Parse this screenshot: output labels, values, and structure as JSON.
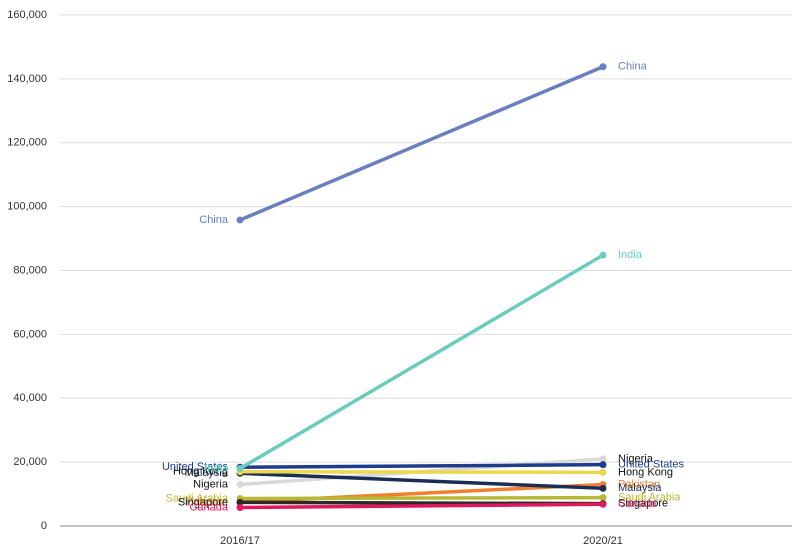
{
  "chart_data": {
    "type": "slope",
    "categories": [
      "2016/17",
      "2020/21"
    ],
    "ylim": [
      0,
      160000
    ],
    "yticks": [
      0,
      {
        "value": 20000,
        "label": "20,000"
      },
      {
        "value": 40000,
        "label": "40,000"
      },
      {
        "value": 60000,
        "label": "60,000"
      },
      {
        "value": 80000,
        "label": "80,000"
      },
      {
        "value": 100000,
        "label": "100,000"
      },
      {
        "value": 120000,
        "label": "120,000"
      },
      {
        "value": 140000,
        "label": "140,000"
      },
      {
        "value": 160000,
        "label": "160,000"
      }
    ],
    "grid": true,
    "series": [
      {
        "name": "Nigeria",
        "color": "#d9d9d9",
        "label_color": "#111111",
        "values": [
          13000,
          21000
        ]
      },
      {
        "name": "Pakistan",
        "color": "#f07f2f",
        "label_color": "#f07f2f",
        "values": [
          7500,
          13000
        ]
      },
      {
        "name": "Saudi Arabia",
        "color": "#b8b838",
        "label_color": "#b8b838",
        "values": [
          8600,
          8900
        ]
      },
      {
        "name": "Singapore",
        "color": "#2a2a2a",
        "label_color": "#111111",
        "values": [
          7400,
          7000
        ]
      },
      {
        "name": "Canada",
        "color": "#e0195a",
        "label_color": "#e0195a",
        "values": [
          5800,
          6800
        ]
      },
      {
        "name": "Malaysia",
        "color": "#1c2d55",
        "label_color": "#1c2d55",
        "values": [
          16500,
          11800
        ]
      },
      {
        "name": "Hong Kong",
        "color": "#ecd84e",
        "label_color": "#111111",
        "values": [
          17000,
          16800
        ]
      },
      {
        "name": "United States",
        "color": "#1f3b8c",
        "label_color": "#1f3b8c",
        "values": [
          18400,
          19200
        ]
      },
      {
        "name": "India",
        "color": "#6ccbbd",
        "label_color": "#6ccbbd",
        "values": [
          18000,
          84800
        ]
      },
      {
        "name": "China",
        "color": "#6a7fbf",
        "label_color": "#6a7fbf",
        "values": [
          95800,
          143800
        ]
      }
    ]
  }
}
